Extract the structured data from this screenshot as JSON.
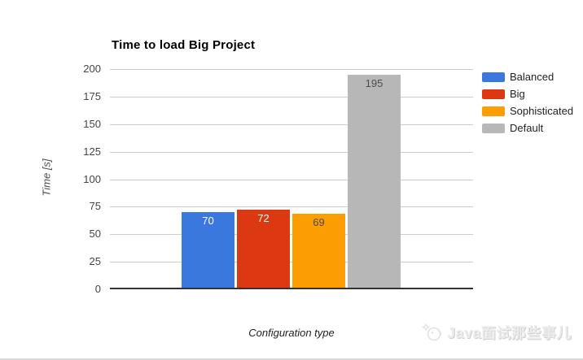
{
  "chart_data": {
    "type": "bar",
    "title": "Time to load Big Project",
    "xlabel": "Configuration type",
    "ylabel": "Time [s]",
    "categories": [
      "Balanced",
      "Big",
      "Sophisticated",
      "Default"
    ],
    "values": [
      70,
      72,
      69,
      195
    ],
    "bar_colors": [
      "#3b78dd",
      "#dc3912",
      "#fb9d03",
      "#b7b7b7"
    ],
    "value_label_colors": [
      "#ffffff",
      "#ffffff",
      "#4d4d4d",
      "#4d4d4d"
    ],
    "ylim": [
      0,
      200
    ],
    "yticks": [
      0,
      25,
      50,
      75,
      100,
      125,
      150,
      175,
      200
    ],
    "grid": true,
    "legend_position": "right",
    "legend": [
      {
        "label": "Balanced",
        "color": "#3b78dd"
      },
      {
        "label": "Big",
        "color": "#dc3912"
      },
      {
        "label": "Sophisticated",
        "color": "#fb9d03"
      },
      {
        "label": "Default",
        "color": "#b7b7b7"
      }
    ],
    "axis_color": "#333333",
    "gridline_color": "#cccccc",
    "tick_label_color": "#444444"
  },
  "watermark": {
    "text": "Java面试那些事儿",
    "icon": "mascot-icon"
  }
}
